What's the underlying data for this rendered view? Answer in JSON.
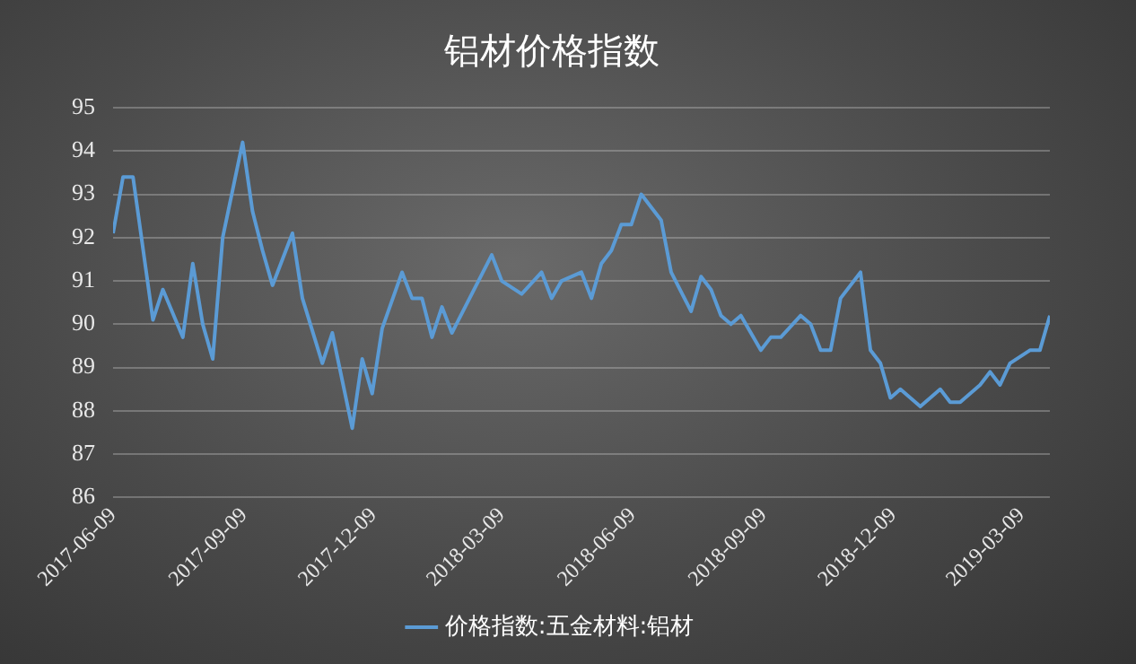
{
  "chart_data": {
    "type": "line",
    "title": "铝材价格指数",
    "x": [
      "2017-06-09",
      "2017-06-16",
      "2017-06-23",
      "2017-07-07",
      "2017-07-14",
      "2017-07-28",
      "2017-08-04",
      "2017-08-11",
      "2017-08-18",
      "2017-08-25",
      "2017-09-08",
      "2017-09-15",
      "2017-09-22",
      "2017-09-29",
      "2017-10-13",
      "2017-10-20",
      "2017-11-03",
      "2017-11-10",
      "2017-11-24",
      "2017-12-01",
      "2017-12-08",
      "2017-12-15",
      "2017-12-29",
      "2018-01-05",
      "2018-01-12",
      "2018-01-19",
      "2018-01-26",
      "2018-02-02",
      "2018-03-02",
      "2018-03-09",
      "2018-03-23",
      "2018-04-06",
      "2018-04-13",
      "2018-04-20",
      "2018-05-04",
      "2018-05-11",
      "2018-05-18",
      "2018-05-25",
      "2018-06-01",
      "2018-06-08",
      "2018-06-15",
      "2018-06-29",
      "2018-07-06",
      "2018-07-20",
      "2018-07-27",
      "2018-08-03",
      "2018-08-10",
      "2018-08-17",
      "2018-08-24",
      "2018-09-07",
      "2018-09-14",
      "2018-09-21",
      "2018-10-05",
      "2018-10-12",
      "2018-10-19",
      "2018-10-26",
      "2018-11-02",
      "2018-11-16",
      "2018-11-23",
      "2018-11-30",
      "2018-12-07",
      "2018-12-14",
      "2018-12-28",
      "2019-01-11",
      "2019-01-18",
      "2019-01-25",
      "2019-02-08",
      "2019-02-15",
      "2019-02-22",
      "2019-03-01",
      "2019-03-15",
      "2019-03-22",
      "2019-03-29"
    ],
    "series": [
      {
        "name": "价格指数:五金材料:铝材",
        "color": "#5b9bd5",
        "values": [
          92.1,
          93.4,
          93.4,
          90.1,
          90.8,
          89.7,
          91.4,
          90.0,
          89.2,
          92.0,
          94.2,
          92.6,
          91.7,
          90.9,
          92.1,
          90.6,
          89.1,
          89.8,
          87.6,
          89.2,
          88.4,
          89.9,
          91.2,
          90.6,
          90.6,
          89.7,
          90.4,
          89.8,
          91.6,
          91.0,
          90.7,
          91.2,
          90.6,
          91.0,
          91.2,
          90.6,
          91.4,
          91.7,
          92.3,
          92.3,
          93.0,
          92.4,
          91.2,
          90.3,
          91.1,
          90.8,
          90.2,
          90.0,
          90.2,
          89.4,
          89.7,
          89.7,
          90.2,
          90.0,
          89.4,
          89.4,
          90.6,
          91.2,
          89.4,
          89.1,
          88.3,
          88.5,
          88.1,
          88.5,
          88.2,
          88.2,
          88.6,
          88.9,
          88.6,
          89.1,
          89.4,
          89.4,
          90.2
        ]
      }
    ],
    "xlim": [
      "2017-06-09",
      "2019-03-29"
    ],
    "xticks": [
      "2017-06-09",
      "2017-09-09",
      "2017-12-09",
      "2018-03-09",
      "2018-06-09",
      "2018-09-09",
      "2018-12-09",
      "2019-03-09"
    ],
    "ylim": [
      86,
      95
    ],
    "yticks": [
      86,
      87,
      88,
      89,
      90,
      91,
      92,
      93,
      94,
      95
    ],
    "grid": "y",
    "legend": "bottom",
    "marker": "none",
    "line_style": "solid"
  }
}
